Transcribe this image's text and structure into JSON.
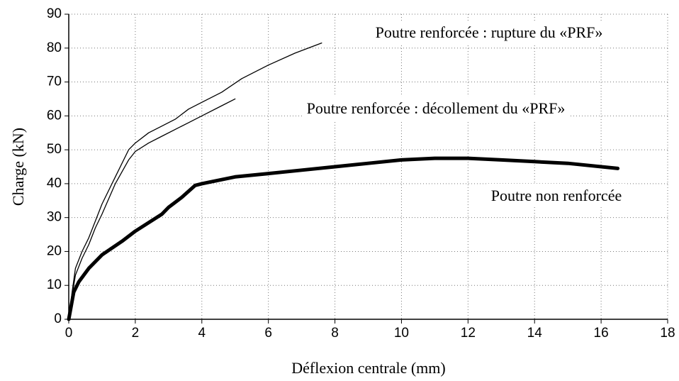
{
  "chart_data": {
    "type": "line",
    "x_label": "Déflexion centrale (mm)",
    "y_label": "Charge (kN)",
    "xlim": [
      0,
      18
    ],
    "xticks": [
      0,
      2,
      4,
      6,
      8,
      10,
      12,
      14,
      16,
      18
    ],
    "ylim": [
      0,
      90
    ],
    "yticks": [
      0,
      10,
      20,
      30,
      40,
      50,
      60,
      70,
      80,
      90
    ],
    "grid": true,
    "series": [
      {
        "name": "Poutre renforcée : rupture du «PRF»",
        "color": "#000000",
        "x": [
          0,
          0.1,
          0.2,
          0.4,
          0.6,
          0.8,
          1,
          1.4,
          1.8,
          2,
          2.4,
          2.8,
          3.2,
          3.6,
          4,
          4.6,
          5.2,
          6,
          6.8,
          7.6
        ],
        "values": [
          0,
          8,
          15,
          20,
          24,
          29,
          34,
          42,
          50,
          52,
          55,
          57,
          59,
          62,
          64,
          67,
          71,
          75,
          78.5,
          81.5
        ]
      },
      {
        "name": "Poutre renforcée : décollement du «PRF»",
        "color": "#000000",
        "x": [
          0,
          0.1,
          0.2,
          0.4,
          0.6,
          0.8,
          1,
          1.4,
          1.8,
          2,
          2.4,
          2.8,
          3.2,
          3.6,
          4,
          4.6,
          5
        ],
        "values": [
          0,
          7,
          13,
          18,
          22,
          27,
          31,
          40,
          47,
          49.5,
          52,
          54,
          56,
          58,
          60,
          63,
          65
        ]
      },
      {
        "name": "Poutre non renforcée",
        "color": "#000000",
        "x": [
          0,
          0.15,
          0.3,
          0.6,
          1,
          1.6,
          2,
          2.8,
          3,
          3.4,
          3.8,
          4,
          5,
          6,
          7,
          8,
          9,
          10,
          11,
          12,
          13,
          14,
          15,
          16.5
        ],
        "values": [
          0,
          8,
          11,
          15,
          19,
          23,
          26,
          31,
          33,
          36,
          39.5,
          40,
          42,
          43,
          44,
          45,
          46,
          47,
          47.5,
          47.5,
          47,
          46.5,
          46,
          44.5
        ]
      }
    ]
  }
}
